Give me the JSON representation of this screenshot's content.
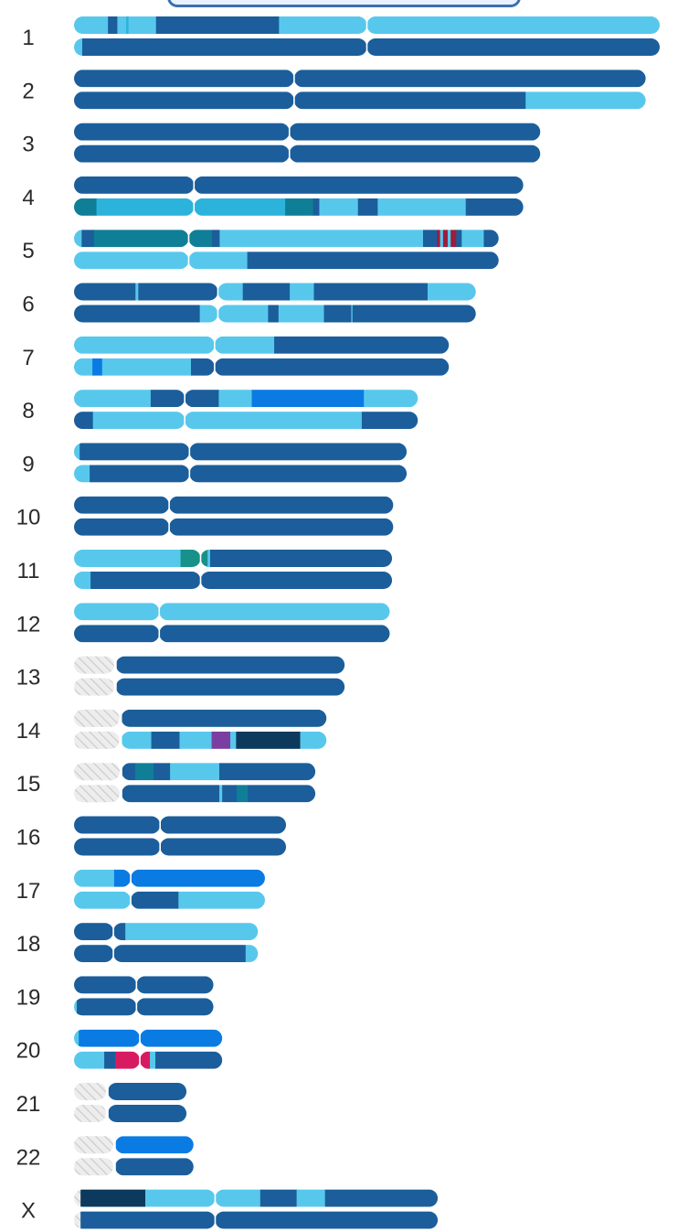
{
  "chart_data": {
    "type": "chromosome-ideogram",
    "title": "",
    "palette": {
      "L": "#57c8ec",
      "D": "#1b5e9b",
      "B": "#0a7be3",
      "T": "#0f7f97",
      "N": "#0d3a5c",
      "C": "#2bb3dc",
      "G": "#17918a",
      "P": "#7b3fa2",
      "M": "#d81b60",
      "R": "#9c1d3c",
      "U": "#cfcfcf"
    },
    "chromosomes": [
      {
        "label": "1",
        "length": 1.0,
        "centromere": 0.5,
        "short_arm_unmapped": 0,
        "haplotypes": [
          [
            [
              0,
              0.058,
              "L"
            ],
            [
              0.058,
              0.074,
              "D"
            ],
            [
              0.074,
              0.089,
              "L"
            ],
            [
              0.089,
              0.093,
              "C"
            ],
            [
              0.093,
              0.14,
              "L"
            ],
            [
              0.14,
              0.35,
              "D"
            ],
            [
              0.35,
              1.0,
              "L"
            ]
          ],
          [
            [
              0,
              0.014,
              "L"
            ],
            [
              0.014,
              1.0,
              "D"
            ]
          ]
        ]
      },
      {
        "label": "2",
        "length": 0.976,
        "centromere": 0.385,
        "short_arm_unmapped": 0,
        "haplotypes": [
          [
            [
              0,
              1.0,
              "D"
            ]
          ],
          [
            [
              0,
              0.79,
              "D"
            ],
            [
              0.79,
              1.0,
              "L"
            ]
          ]
        ]
      },
      {
        "label": "3",
        "length": 0.796,
        "centromere": 0.462,
        "short_arm_unmapped": 0,
        "haplotypes": [
          [
            [
              0,
              1.0,
              "D"
            ]
          ],
          [
            [
              0,
              1.0,
              "D"
            ]
          ]
        ]
      },
      {
        "label": "4",
        "length": 0.767,
        "centromere": 0.267,
        "short_arm_unmapped": 0,
        "haplotypes": [
          [
            [
              0,
              1.0,
              "D"
            ]
          ],
          [
            [
              0,
              0.05,
              "T"
            ],
            [
              0.05,
              0.47,
              "C"
            ],
            [
              0.47,
              0.532,
              "T"
            ],
            [
              0.532,
              0.546,
              "D"
            ],
            [
              0.546,
              0.632,
              "L"
            ],
            [
              0.632,
              0.676,
              "D"
            ],
            [
              0.676,
              0.872,
              "L"
            ],
            [
              0.872,
              1.0,
              "D"
            ]
          ]
        ]
      },
      {
        "label": "5",
        "length": 0.725,
        "centromere": 0.27,
        "short_arm_unmapped": 0,
        "haplotypes": [
          [
            [
              0,
              0.018,
              "L"
            ],
            [
              0.018,
              0.047,
              "D"
            ],
            [
              0.047,
              0.27,
              "T"
            ],
            [
              0.27,
              0.325,
              "T"
            ],
            [
              0.325,
              0.343,
              "D"
            ],
            [
              0.343,
              0.822,
              "L"
            ],
            [
              0.822,
              0.855,
              "D"
            ],
            [
              0.855,
              0.862,
              "R"
            ],
            [
              0.862,
              0.869,
              "L"
            ],
            [
              0.869,
              0.88,
              "R"
            ],
            [
              0.88,
              0.887,
              "L"
            ],
            [
              0.887,
              0.9,
              "R"
            ],
            [
              0.9,
              0.913,
              "D"
            ],
            [
              0.913,
              0.965,
              "L"
            ],
            [
              0.965,
              1.0,
              "D"
            ]
          ],
          [
            [
              0,
              0.408,
              "L"
            ],
            [
              0.408,
              1.0,
              "D"
            ]
          ]
        ]
      },
      {
        "label": "6",
        "length": 0.686,
        "centromere": 0.358,
        "short_arm_unmapped": 0,
        "haplotypes": [
          [
            [
              0,
              0.153,
              "D"
            ],
            [
              0.153,
              0.16,
              "L"
            ],
            [
              0.16,
              0.187,
              "D"
            ],
            [
              0.187,
              0.358,
              "D"
            ],
            [
              0.358,
              0.42,
              "L"
            ],
            [
              0.42,
              0.537,
              "D"
            ],
            [
              0.537,
              0.597,
              "L"
            ],
            [
              0.597,
              0.88,
              "D"
            ],
            [
              0.88,
              1.0,
              "L"
            ]
          ],
          [
            [
              0,
              0.313,
              "D"
            ],
            [
              0.313,
              0.358,
              "L"
            ],
            [
              0.358,
              0.483,
              "L"
            ],
            [
              0.483,
              0.509,
              "D"
            ],
            [
              0.509,
              0.622,
              "L"
            ],
            [
              0.622,
              0.69,
              "D"
            ],
            [
              0.69,
              0.693,
              "L"
            ],
            [
              0.693,
              1.0,
              "D"
            ]
          ]
        ]
      },
      {
        "label": "7",
        "length": 0.64,
        "centromere": 0.375,
        "short_arm_unmapped": 0,
        "haplotypes": [
          [
            [
              0,
              0.534,
              "L"
            ],
            [
              0.534,
              1.0,
              "D"
            ]
          ],
          [
            [
              0,
              0.049,
              "L"
            ],
            [
              0.049,
              0.075,
              "B"
            ],
            [
              0.075,
              0.312,
              "L"
            ],
            [
              0.312,
              1.0,
              "D"
            ]
          ]
        ]
      },
      {
        "label": "8",
        "length": 0.587,
        "centromere": 0.322,
        "short_arm_unmapped": 0,
        "haplotypes": [
          [
            [
              0,
              0.223,
              "L"
            ],
            [
              0.223,
              0.322,
              "D"
            ],
            [
              0.322,
              0.421,
              "D"
            ],
            [
              0.421,
              0.426,
              "L"
            ],
            [
              0.426,
              0.517,
              "L"
            ],
            [
              0.517,
              0.843,
              "B"
            ],
            [
              0.843,
              1.0,
              "L"
            ]
          ],
          [
            [
              0,
              0.055,
              "D"
            ],
            [
              0.055,
              0.322,
              "L"
            ],
            [
              0.322,
              0.837,
              "L"
            ],
            [
              0.837,
              1.0,
              "D"
            ]
          ]
        ]
      },
      {
        "label": "9",
        "length": 0.568,
        "centromere": 0.347,
        "short_arm_unmapped": 0,
        "haplotypes": [
          [
            [
              0,
              0.017,
              "L"
            ],
            [
              0.017,
              1.0,
              "D"
            ]
          ],
          [
            [
              0,
              0.047,
              "L"
            ],
            [
              0.047,
              1.0,
              "D"
            ]
          ]
        ]
      },
      {
        "label": "10",
        "length": 0.545,
        "centromere": 0.298,
        "short_arm_unmapped": 0,
        "haplotypes": [
          [
            [
              0,
              1.0,
              "D"
            ]
          ],
          [
            [
              0,
              1.0,
              "D"
            ]
          ]
        ]
      },
      {
        "label": "11",
        "length": 0.543,
        "centromere": 0.398,
        "short_arm_unmapped": 0,
        "haplotypes": [
          [
            [
              0,
              0.335,
              "L"
            ],
            [
              0.335,
              0.398,
              "G"
            ],
            [
              0.398,
              0.42,
              "G"
            ],
            [
              0.42,
              0.428,
              "L"
            ],
            [
              0.428,
              1.0,
              "D"
            ]
          ],
          [
            [
              0,
              0.052,
              "L"
            ],
            [
              0.052,
              1.0,
              "D"
            ]
          ]
        ]
      },
      {
        "label": "12",
        "length": 0.539,
        "centromere": 0.27,
        "short_arm_unmapped": 0,
        "haplotypes": [
          [
            [
              0,
              1.0,
              "L"
            ]
          ],
          [
            [
              0,
              1.0,
              "D"
            ]
          ]
        ]
      },
      {
        "label": "13",
        "length": 0.462,
        "centromere": 0.155,
        "short_arm_unmapped": 1,
        "haplotypes": [
          [
            [
              0.155,
              1.0,
              "D"
            ]
          ],
          [
            [
              0.155,
              1.0,
              "D"
            ]
          ]
        ]
      },
      {
        "label": "14",
        "length": 0.431,
        "centromere": 0.187,
        "short_arm_unmapped": 1,
        "haplotypes": [
          [
            [
              0.187,
              1.0,
              "D"
            ]
          ],
          [
            [
              0.187,
              0.306,
              "L"
            ],
            [
              0.306,
              0.418,
              "D"
            ],
            [
              0.418,
              0.545,
              "L"
            ],
            [
              0.545,
              0.619,
              "P"
            ],
            [
              0.619,
              0.642,
              "L"
            ],
            [
              0.642,
              0.896,
              "N"
            ],
            [
              0.896,
              1.0,
              "L"
            ]
          ]
        ]
      },
      {
        "label": "15",
        "length": 0.412,
        "centromere": 0.197,
        "short_arm_unmapped": 1,
        "haplotypes": [
          [
            [
              0.197,
              0.254,
              "D"
            ],
            [
              0.254,
              0.33,
              "T"
            ],
            [
              0.33,
              0.398,
              "D"
            ],
            [
              0.398,
              0.602,
              "L"
            ],
            [
              0.602,
              1.0,
              "D"
            ]
          ],
          [
            [
              0.197,
              0.602,
              "D"
            ],
            [
              0.602,
              0.614,
              "L"
            ],
            [
              0.614,
              0.674,
              "D"
            ],
            [
              0.674,
              0.72,
              "T"
            ],
            [
              0.72,
              1.0,
              "D"
            ]
          ]
        ]
      },
      {
        "label": "16",
        "length": 0.362,
        "centromere": 0.406,
        "short_arm_unmapped": 0,
        "haplotypes": [
          [
            [
              0,
              1.0,
              "D"
            ]
          ],
          [
            [
              0,
              1.0,
              "D"
            ]
          ]
        ]
      },
      {
        "label": "17",
        "length": 0.326,
        "centromere": 0.297,
        "short_arm_unmapped": 0,
        "haplotypes": [
          [
            [
              0,
              0.21,
              "L"
            ],
            [
              0.21,
              1.0,
              "B"
            ]
          ],
          [
            [
              0,
              0.297,
              "L"
            ],
            [
              0.297,
              0.547,
              "D"
            ],
            [
              0.547,
              1.0,
              "L"
            ]
          ]
        ]
      },
      {
        "label": "18",
        "length": 0.314,
        "centromere": 0.214,
        "short_arm_unmapped": 0,
        "haplotypes": [
          [
            [
              0,
              0.214,
              "D"
            ],
            [
              0.214,
              0.279,
              "D"
            ],
            [
              0.279,
              1.0,
              "L"
            ]
          ],
          [
            [
              0,
              0.933,
              "D"
            ],
            [
              0.933,
              1.0,
              "L"
            ]
          ]
        ]
      },
      {
        "label": "19",
        "length": 0.238,
        "centromere": 0.448,
        "short_arm_unmapped": 0,
        "haplotypes": [
          [
            [
              0,
              1.0,
              "D"
            ]
          ],
          [
            [
              0,
              0.02,
              "L"
            ],
            [
              0.02,
              1.0,
              "D"
            ]
          ]
        ]
      },
      {
        "label": "20",
        "length": 0.253,
        "centromere": 0.444,
        "short_arm_unmapped": 0,
        "haplotypes": [
          [
            [
              0,
              0.032,
              "L"
            ],
            [
              0.032,
              1.0,
              "B"
            ]
          ],
          [
            [
              0,
              0.204,
              "L"
            ],
            [
              0.204,
              0.278,
              "D"
            ],
            [
              0.278,
              0.444,
              "M"
            ],
            [
              0.444,
              0.512,
              "M"
            ],
            [
              0.512,
              0.549,
              "L"
            ],
            [
              0.549,
              1.0,
              "D"
            ]
          ]
        ]
      },
      {
        "label": "21",
        "length": 0.192,
        "centromere": 0.301,
        "short_arm_unmapped": 1,
        "haplotypes": [
          [
            [
              0.301,
              1.0,
              "D"
            ]
          ],
          [
            [
              0.301,
              1.0,
              "D"
            ]
          ]
        ]
      },
      {
        "label": "22",
        "length": 0.204,
        "centromere": 0.344,
        "short_arm_unmapped": 1,
        "haplotypes": [
          [
            [
              0.344,
              1.0,
              "B"
            ]
          ],
          [
            [
              0.344,
              1.0,
              "D"
            ]
          ]
        ]
      },
      {
        "label": "X",
        "length": 0.621,
        "centromere": 0.388,
        "short_arm_unmapped": 0,
        "haplotypes": [
          [
            [
              0,
              0.018,
              "U"
            ],
            [
              0.018,
              0.196,
              "N"
            ],
            [
              0.196,
              0.388,
              "L"
            ],
            [
              0.388,
              0.512,
              "L"
            ],
            [
              0.512,
              0.612,
              "D"
            ],
            [
              0.612,
              0.69,
              "L"
            ],
            [
              0.69,
              1.0,
              "D"
            ]
          ],
          [
            [
              0,
              0.018,
              "U"
            ],
            [
              0.018,
              1.0,
              "D"
            ]
          ]
        ]
      }
    ]
  }
}
